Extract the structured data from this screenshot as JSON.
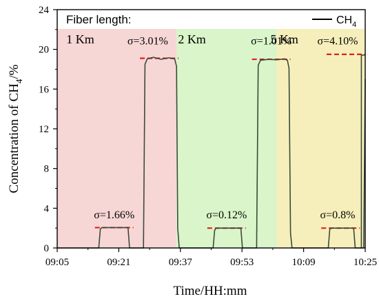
{
  "chart_data": {
    "type": "line",
    "title": "",
    "xlabel": "Time/HH:mm",
    "ylabel": "Concentration of CH",
    "ylabel_sub": "4",
    "ylabel_suffix": "/%",
    "xlim_minutes": [
      545,
      625
    ],
    "ylim": [
      0,
      24
    ],
    "x_ticks": [
      "09:05",
      "09:21",
      "09:37",
      "09:53",
      "10:09",
      "10:25"
    ],
    "y_ticks": [
      "0",
      "4",
      "8",
      "12",
      "16",
      "20",
      "24"
    ],
    "legend": {
      "title": "Fiber length:",
      "entry": "CH",
      "entry_sub": "4",
      "placement": "top-right"
    },
    "regions": [
      {
        "label": "1 Km",
        "x_start": "09:05",
        "x_end": "09:36",
        "color": "#f7d6d6"
      },
      {
        "label": "2 Km",
        "x_start": "09:36",
        "x_end": "10:02",
        "color": "#d9f5c9"
      },
      {
        "label": "5 Km",
        "x_start": "10:02",
        "x_end": "10:25",
        "color": "#f6efbb"
      }
    ],
    "series": [
      {
        "color": "#3a4a3a",
        "x_unit": "minutes since midnight",
        "points": [
          [
            545,
            0
          ],
          [
            555.8,
            0
          ],
          [
            556.2,
            1.9
          ],
          [
            556.6,
            2.05
          ],
          [
            563.4,
            2.05
          ],
          [
            563.8,
            0
          ],
          [
            567.4,
            0
          ],
          [
            567.8,
            18.5
          ],
          [
            568.4,
            19.05
          ],
          [
            570,
            19.2
          ],
          [
            572,
            19.0
          ],
          [
            574,
            19.15
          ],
          [
            575.5,
            19.05
          ],
          [
            576.0,
            18.3
          ],
          [
            576.3,
            2
          ],
          [
            576.7,
            0
          ],
          [
            585.5,
            0
          ],
          [
            585.9,
            1.8
          ],
          [
            586.3,
            2.0
          ],
          [
            592.7,
            2.0
          ],
          [
            593.1,
            0
          ],
          [
            596.8,
            0
          ],
          [
            597.2,
            18.4
          ],
          [
            597.8,
            18.9
          ],
          [
            600,
            19.0
          ],
          [
            602,
            18.95
          ],
          [
            604,
            19.05
          ],
          [
            604.8,
            18.9
          ],
          [
            605.2,
            18.1
          ],
          [
            605.6,
            1.5
          ],
          [
            606.0,
            0
          ],
          [
            615.4,
            0
          ],
          [
            615.8,
            1.9
          ],
          [
            616.2,
            2.0
          ],
          [
            622.0,
            2.0
          ],
          [
            622.4,
            0
          ],
          [
            624.6,
            0
          ],
          [
            625.0,
            17.0
          ]
        ]
      }
    ],
    "extra_segments": {
      "note": "last plateau continues beyond 10:25 in original tick range",
      "points": [
        [
          624.6,
          0
        ]
      ]
    },
    "annotations": [
      {
        "text": "σ=1.66%",
        "x": 559.8,
        "y": 2.05,
        "label_x": 559.8,
        "label_y": 3.0
      },
      {
        "text": "σ=3.01%",
        "x": 571.5,
        "y": 19.1,
        "label_x": 568.5,
        "label_y": 20.5
      },
      {
        "text": "σ=0.12%",
        "x": 589.0,
        "y": 2.0,
        "label_x": 589.0,
        "label_y": 3.0
      },
      {
        "text": "σ=1.01%",
        "x": 600.6,
        "y": 19.0,
        "label_x": 600.6,
        "label_y": 20.5
      },
      {
        "text": "σ=0.8%",
        "x": 618.6,
        "y": 2.0,
        "label_x": 618.6,
        "label_y": 3.0
      },
      {
        "text": "σ=4.10%",
        "x": 630.0,
        "y": 19.5,
        "label_x": 630.0,
        "label_y": 20.5
      }
    ]
  }
}
